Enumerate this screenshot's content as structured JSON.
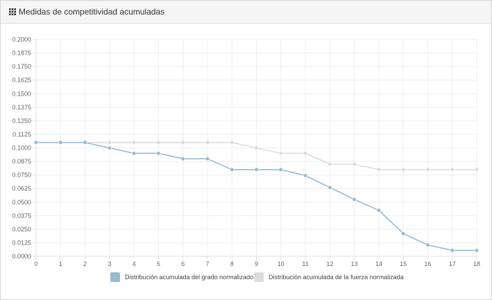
{
  "panel": {
    "title": "Medidas de competitividad acumuladas",
    "icon": "grid-icon"
  },
  "chart_data": {
    "type": "line",
    "title": "Medidas de competitividad acumuladas",
    "xlabel": "",
    "ylabel": "",
    "x": [
      0,
      1,
      2,
      3,
      4,
      5,
      6,
      7,
      8,
      9,
      10,
      11,
      12,
      13,
      14,
      15,
      16,
      17,
      18
    ],
    "ylim": [
      0,
      0.2
    ],
    "y_ticks": [
      "0.0000",
      "0.0125",
      "0.0250",
      "0.0375",
      "0.0500",
      "0.0625",
      "0.0750",
      "0.0875",
      "0.1000",
      "0.1125",
      "0.1250",
      "0.1375",
      "0.1500",
      "0.1625",
      "0.1750",
      "0.1875",
      "0.2000"
    ],
    "grid": true,
    "legend_position": "bottom",
    "series": [
      {
        "name": "Distribución acumulada del grado normalizado",
        "color": "#97bbcd",
        "values": [
          0.105,
          0.105,
          0.105,
          0.1,
          0.095,
          0.095,
          0.09,
          0.09,
          0.08,
          0.08,
          0.08,
          0.0745,
          0.0635,
          0.0525,
          0.0425,
          0.021,
          0.0105,
          0.0055,
          0.0055
        ]
      },
      {
        "name": "Distribución acumulada de la fuerza normalizada",
        "color": "#dcdcdc",
        "values": [
          0.105,
          0.105,
          0.105,
          0.105,
          0.105,
          0.105,
          0.105,
          0.105,
          0.105,
          0.1,
          0.095,
          0.095,
          0.085,
          0.085,
          0.08,
          0.08,
          0.08,
          0.08,
          0.08
        ]
      }
    ]
  }
}
